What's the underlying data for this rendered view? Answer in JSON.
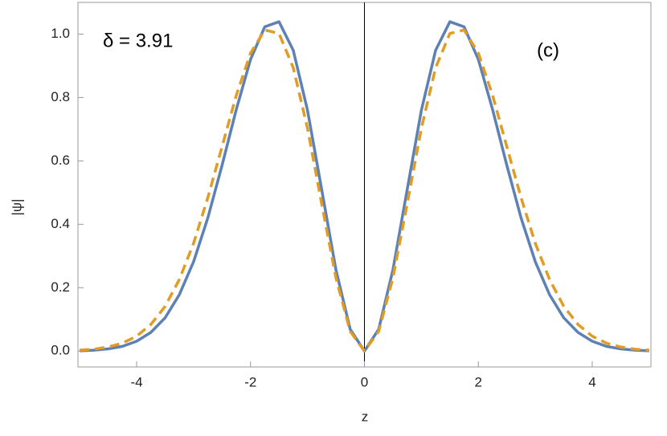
{
  "chart_data": {
    "type": "line",
    "annotations": [
      "δ = 3.91",
      "(c)"
    ],
    "xlabel": "z",
    "ylabel": "|ψ|",
    "x": [
      -5,
      -4.75,
      -4.5,
      -4.25,
      -4,
      -3.75,
      -3.5,
      -3.25,
      -3,
      -2.75,
      -2.5,
      -2.25,
      -2,
      -1.75,
      -1.5,
      -1.25,
      -1,
      -0.75,
      -0.5,
      -0.25,
      0,
      0.25,
      0.5,
      0.75,
      1,
      1.25,
      1.5,
      1.75,
      2,
      2.25,
      2.5,
      2.75,
      3,
      3.25,
      3.5,
      3.75,
      4,
      4.25,
      4.5,
      4.75,
      5
    ],
    "series": [
      {
        "color": "#5e81b5",
        "style": "solid",
        "values": [
          0.001,
          0.003,
          0.007,
          0.015,
          0.031,
          0.059,
          0.105,
          0.178,
          0.282,
          0.42,
          0.586,
          0.762,
          0.92,
          1.023,
          1.039,
          0.949,
          0.76,
          0.509,
          0.256,
          0.069,
          0,
          0.069,
          0.256,
          0.509,
          0.76,
          0.949,
          1.039,
          1.023,
          0.92,
          0.762,
          0.586,
          0.42,
          0.282,
          0.178,
          0.105,
          0.059,
          0.031,
          0.015,
          0.007,
          0.003,
          0.001
        ]
      },
      {
        "color": "#e19c24",
        "style": "dashed",
        "values": [
          0.003,
          0.006,
          0.013,
          0.025,
          0.047,
          0.084,
          0.141,
          0.226,
          0.34,
          0.484,
          0.645,
          0.807,
          0.94,
          1.013,
          1.002,
          0.894,
          0.703,
          0.464,
          0.231,
          0.062,
          0,
          0.062,
          0.231,
          0.464,
          0.703,
          0.894,
          1.002,
          1.013,
          0.94,
          0.807,
          0.645,
          0.484,
          0.34,
          0.226,
          0.141,
          0.084,
          0.047,
          0.025,
          0.013,
          0.006,
          0.003
        ]
      }
    ],
    "xlim": [
      -5.03,
      5.03
    ],
    "ylim": [
      -0.05,
      1.1
    ],
    "xticks": [
      -4,
      -2,
      0,
      2,
      4
    ],
    "yticks": [
      {
        "value": 0,
        "label": "0.0"
      },
      0.2,
      0.4,
      0.6,
      0.8,
      {
        "value": 1,
        "label": "1.0"
      }
    ]
  }
}
